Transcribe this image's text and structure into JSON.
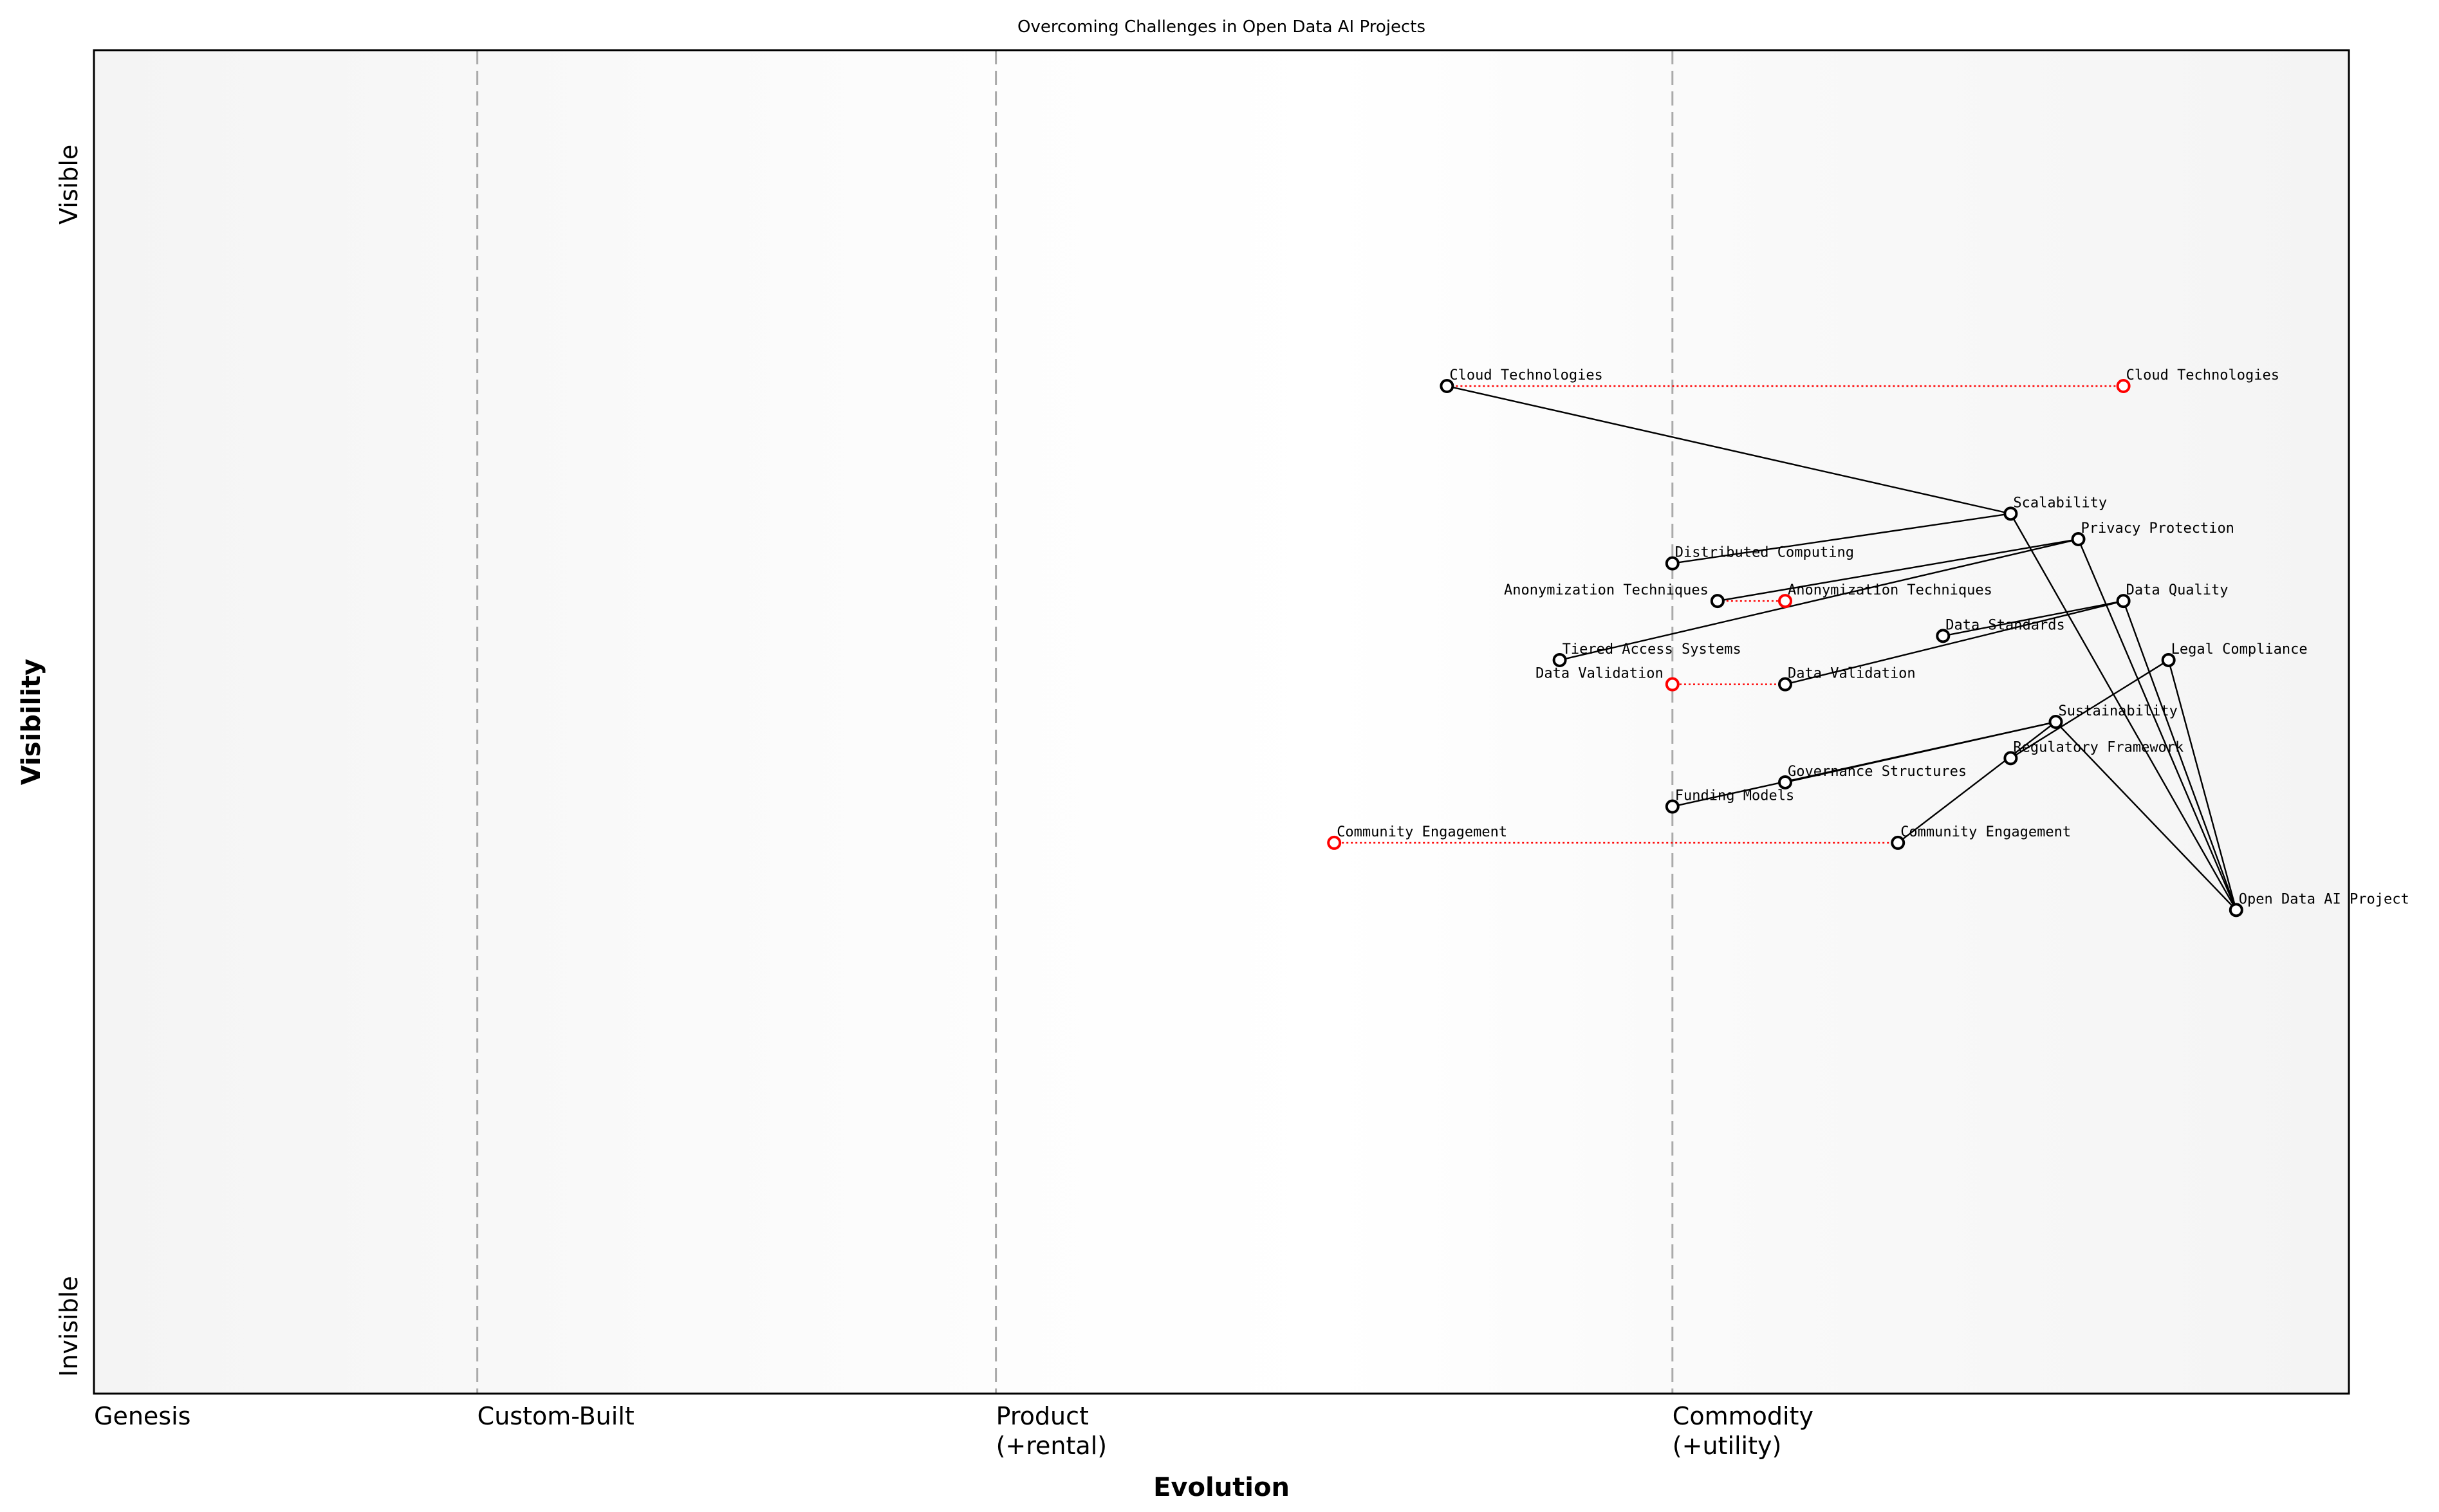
{
  "chart_data": {
    "type": "scatter",
    "subtype": "wardley-map",
    "title": "Overcoming Challenges in Open Data AI Projects",
    "xlabel": "Evolution",
    "ylabel": "Visibility",
    "xlim": [
      0,
      1
    ],
    "ylim": [
      0,
      1
    ],
    "x_stages": [
      {
        "label": "Genesis",
        "x": 0.0
      },
      {
        "label": "Custom-Built",
        "x": 0.17
      },
      {
        "label": "Product\n(+rental)",
        "x": 0.4
      },
      {
        "label": "Commodity\n(+utility)",
        "x": 0.7
      }
    ],
    "y_ticks": [
      {
        "label": "Visible",
        "y": 0.9
      },
      {
        "label": "Invisible",
        "y": 0.05
      }
    ],
    "grid": "vertical dashed at stage boundaries",
    "colors": {
      "node": "#000000",
      "evolved_node": "#ff0000",
      "edge": "#000000",
      "evolution_line": "#ff0000",
      "stage_line": "#aaaaaa"
    },
    "components": [
      {
        "name": "Open Data AI Project",
        "x": 0.95,
        "y": 0.36
      },
      {
        "name": "Cloud Technologies",
        "x": 0.6,
        "y": 0.75
      },
      {
        "name": "Scalability",
        "x": 0.85,
        "y": 0.655
      },
      {
        "name": "Privacy Protection",
        "x": 0.88,
        "y": 0.636
      },
      {
        "name": "Distributed Computing",
        "x": 0.7,
        "y": 0.618
      },
      {
        "name": "Anonymization Techniques",
        "x": 0.72,
        "y": 0.59
      },
      {
        "name": "Data Quality",
        "x": 0.9,
        "y": 0.59
      },
      {
        "name": "Data Standards",
        "x": 0.82,
        "y": 0.564
      },
      {
        "name": "Tiered Access Systems",
        "x": 0.65,
        "y": 0.546
      },
      {
        "name": "Legal Compliance",
        "x": 0.92,
        "y": 0.546
      },
      {
        "name": "Data Validation",
        "x": 0.75,
        "y": 0.528
      },
      {
        "name": "Sustainability",
        "x": 0.87,
        "y": 0.5
      },
      {
        "name": "Regulatory Framework",
        "x": 0.85,
        "y": 0.473
      },
      {
        "name": "Governance Structures",
        "x": 0.75,
        "y": 0.455
      },
      {
        "name": "Funding Models",
        "x": 0.7,
        "y": 0.437
      },
      {
        "name": "Community Engagement",
        "x": 0.8,
        "y": 0.41
      }
    ],
    "evolutions": [
      {
        "name": "Cloud Technologies",
        "from_x": 0.6,
        "to_x": 0.9,
        "y": 0.75
      },
      {
        "name": "Anonymization Techniques",
        "from_x": 0.72,
        "to_x": 0.75,
        "y": 0.59
      },
      {
        "name": "Data Validation",
        "from_x": 0.75,
        "to_x": 0.7,
        "y": 0.528
      },
      {
        "name": "Community Engagement",
        "from_x": 0.8,
        "to_x": 0.55,
        "y": 0.41
      }
    ],
    "links": [
      [
        "Cloud Technologies",
        "Scalability"
      ],
      [
        "Scalability",
        "Distributed Computing"
      ],
      [
        "Scalability",
        "Open Data AI Project"
      ],
      [
        "Privacy Protection",
        "Anonymization Techniques"
      ],
      [
        "Privacy Protection",
        "Tiered Access Systems"
      ],
      [
        "Privacy Protection",
        "Open Data AI Project"
      ],
      [
        "Data Quality",
        "Data Standards"
      ],
      [
        "Data Quality",
        "Data Validation"
      ],
      [
        "Data Quality",
        "Open Data AI Project"
      ],
      [
        "Legal Compliance",
        "Regulatory Framework"
      ],
      [
        "Legal Compliance",
        "Open Data AI Project"
      ],
      [
        "Sustainability",
        "Funding Models"
      ],
      [
        "Sustainability",
        "Governance Structures"
      ],
      [
        "Sustainability",
        "Community Engagement"
      ],
      [
        "Sustainability",
        "Open Data AI Project"
      ]
    ]
  }
}
